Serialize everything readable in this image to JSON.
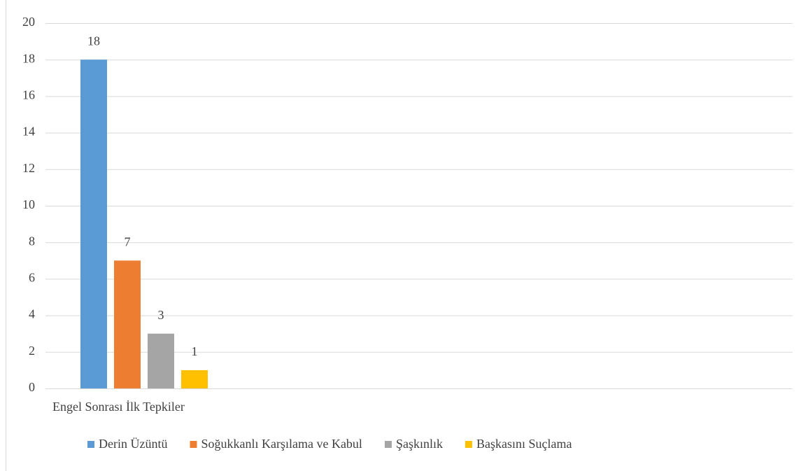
{
  "chart_data": {
    "type": "bar",
    "categories": [
      "Engel Sonrası İlk Tepkiler"
    ],
    "series": [
      {
        "name": "Derin Üzüntü",
        "color": "#5b9bd5",
        "values": [
          18
        ]
      },
      {
        "name": "Soğukkanlı Karşılama ve Kabul",
        "color": "#ed7d31",
        "values": [
          7
        ]
      },
      {
        "name": "Şaşkınlık",
        "color": "#a5a5a5",
        "values": [
          3
        ]
      },
      {
        "name": "Başkasını Suçlama",
        "color": "#ffc000",
        "values": [
          1
        ]
      }
    ],
    "ylim": [
      0,
      20
    ],
    "yticks": [
      0,
      2,
      4,
      6,
      8,
      10,
      12,
      14,
      16,
      18,
      20
    ],
    "grid": true,
    "legend": "bottom"
  }
}
